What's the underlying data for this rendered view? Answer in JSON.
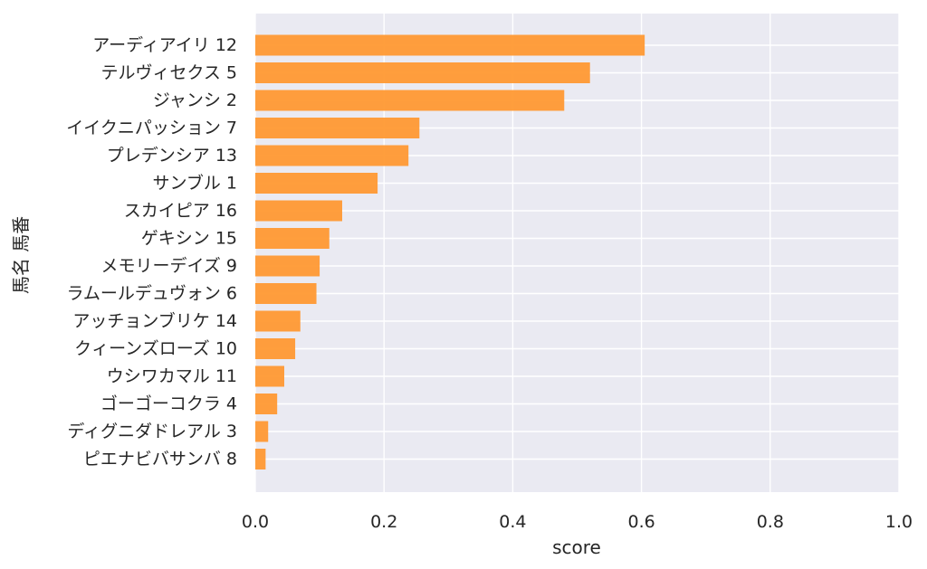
{
  "chart_data": {
    "type": "bar",
    "orientation": "horizontal",
    "categories": [
      "アーディアイリ 12",
      "テルヴィセクス 5",
      "ジャンシ 2",
      "イイクニパッション 7",
      "プレデンシア 13",
      "サンブル 1",
      "スカイピア 16",
      "ゲキシン 15",
      "メモリーデイズ 9",
      "ラムールデュヴォン 6",
      "アッチョンブリケ 14",
      "クィーンズローズ 10",
      "ウシワカマル 11",
      "ゴーゴーコクラ 4",
      "ディグニダドレアル 3",
      "ピエナビバサンバ 8"
    ],
    "values": [
      0.605,
      0.52,
      0.48,
      0.255,
      0.238,
      0.19,
      0.135,
      0.115,
      0.1,
      0.095,
      0.07,
      0.062,
      0.045,
      0.034,
      0.02,
      0.016
    ],
    "xlabel": "score",
    "ylabel": "馬名 馬番",
    "xlim": [
      0,
      1.0
    ],
    "xticks": [
      "0.0",
      "0.2",
      "0.4",
      "0.6",
      "0.8",
      "1.0"
    ],
    "xtick_values": [
      0,
      0.2,
      0.4,
      0.6,
      0.8,
      1.0
    ],
    "grid": true,
    "bar_color": "#ff9933",
    "background_color": "#eaeaf2",
    "grid_color": "#ffffff"
  }
}
